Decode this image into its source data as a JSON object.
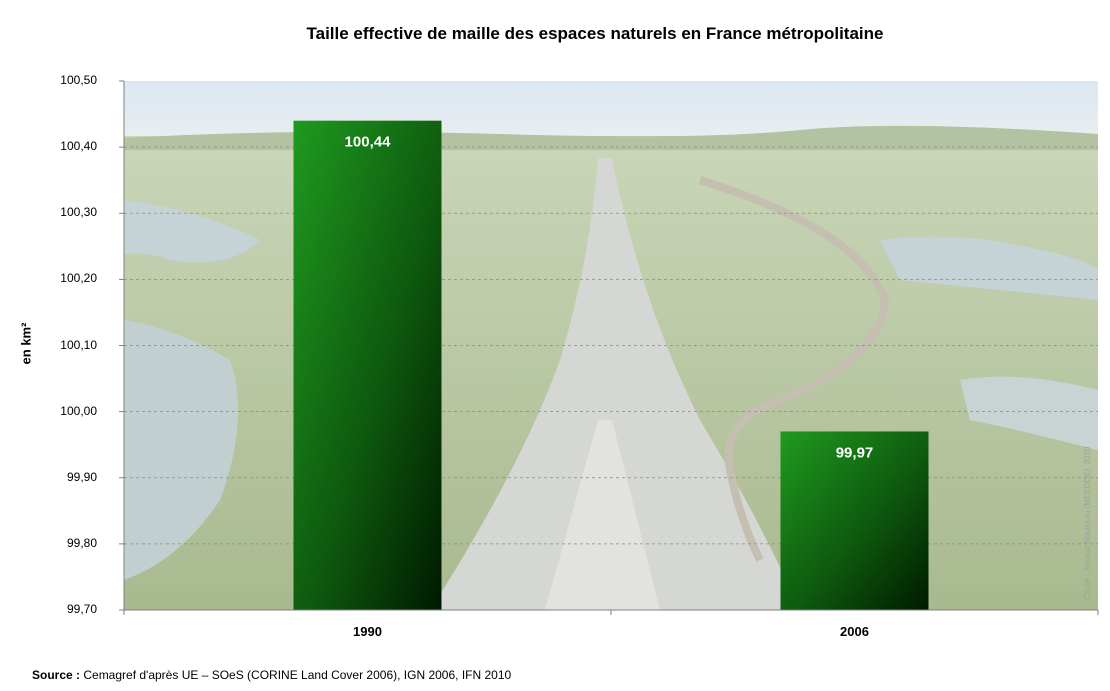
{
  "chart_data": {
    "type": "bar",
    "title": "Taille effective de maille des espaces naturels en France métropolitaine",
    "ylabel": "en km²",
    "xlabel": "",
    "categories": [
      "1990",
      "2006"
    ],
    "values": [
      100.44,
      99.97
    ],
    "value_labels": [
      "100,44",
      "99,97"
    ],
    "ylim": [
      99.7,
      100.5
    ],
    "yticks": [
      "100,50",
      "100,40",
      "100,30",
      "100,20",
      "100,10",
      "100,00",
      "99,90",
      "99,80",
      "99,70"
    ],
    "grid": true,
    "legend": "none",
    "bar_color_top": "#1f9a1f",
    "bar_color_bottom": "#002200"
  },
  "source": {
    "label": "Source :",
    "text": " Cemagref d'après UE – SOeS (CORINE Land Cover 2006), IGN 2006, IFN 2010"
  },
  "photo_credit": "Cliché : Arnaud Bouissou (MEEDDE), 2010"
}
